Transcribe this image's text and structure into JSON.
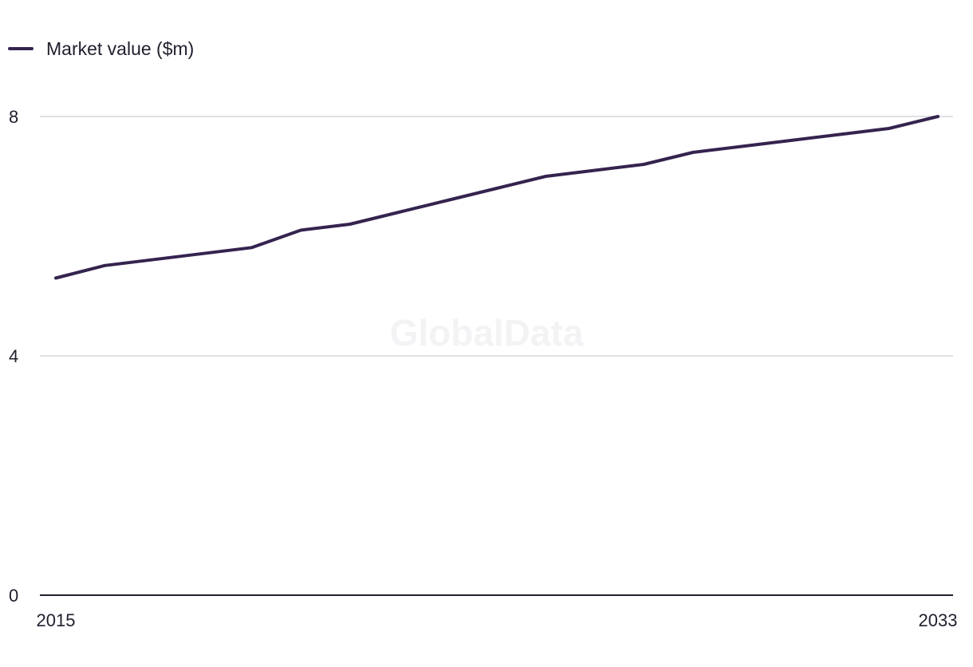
{
  "legend": {
    "label": "Market value ($m)"
  },
  "watermark": "GlobalData",
  "colors": {
    "series": "#35234f",
    "grid": "#d6d6db",
    "axis": "#1f1f2e"
  },
  "chart_data": {
    "type": "line",
    "title": "",
    "xlabel": "",
    "ylabel": "",
    "x": [
      2015,
      2016,
      2017,
      2018,
      2019,
      2020,
      2021,
      2022,
      2023,
      2024,
      2025,
      2026,
      2027,
      2028,
      2029,
      2030,
      2031,
      2032,
      2033
    ],
    "series": [
      {
        "name": "Market value ($m)",
        "values": [
          5.3,
          5.51,
          5.61,
          5.71,
          5.81,
          6.1,
          6.2,
          6.4,
          6.6,
          6.8,
          7.0,
          7.1,
          7.2,
          7.4,
          7.5,
          7.6,
          7.7,
          7.8,
          8.0
        ]
      }
    ],
    "ylim": [
      0,
      8
    ],
    "yticks": [
      "0",
      "4",
      "8"
    ],
    "xticks": [
      "2015",
      "2033"
    ],
    "grid": true,
    "legend_position": "top-left"
  }
}
